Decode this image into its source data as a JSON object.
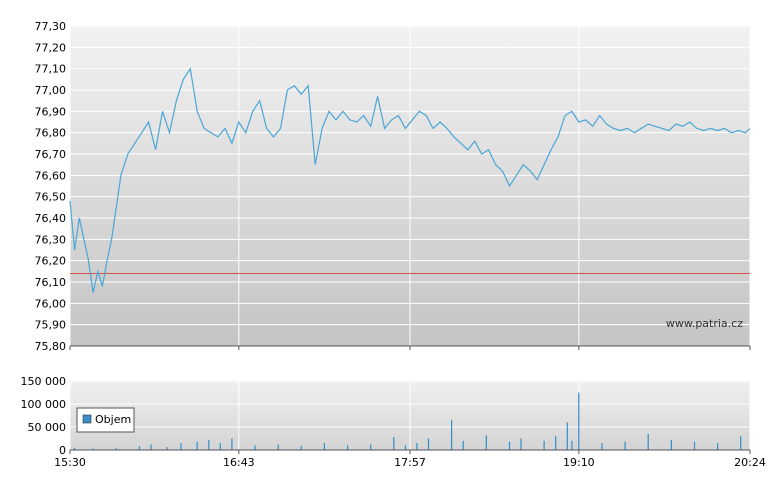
{
  "watermark": "www.patria.cz",
  "colors": {
    "price_line": "#4aa6d6",
    "reference_line": "#d9534f",
    "volume_bar": "#2f8fca",
    "legend_swatch": "#3b8fc8",
    "grid": "#ffffff",
    "plot_bg_top": "#f2f2f2",
    "plot_bg_bottom": "#c4c4c4"
  },
  "chart_data": [
    {
      "type": "line",
      "x_ticks": [
        "15:30",
        "16:43",
        "17:57",
        "19:10",
        "20:24"
      ],
      "y_ticks": [
        "77,30",
        "77,20",
        "77,10",
        "77,00",
        "76,90",
        "76,80",
        "76,70",
        "76,60",
        "76,50",
        "76,40",
        "76,30",
        "76,20",
        "76,10",
        "76,00",
        "75,90",
        "75,80"
      ],
      "ylim": [
        75.8,
        77.3
      ],
      "reference_value": 76.14,
      "series": [
        {
          "x": [
            "15:30",
            "15:32",
            "15:34",
            "15:36",
            "15:38",
            "15:40",
            "15:42",
            "15:44",
            "15:46",
            "15:48",
            "15:50",
            "15:52",
            "15:55",
            "15:58",
            "16:01",
            "16:04",
            "16:07",
            "16:10",
            "16:13",
            "16:16",
            "16:19",
            "16:22",
            "16:25",
            "16:28",
            "16:31",
            "16:34",
            "16:37",
            "16:40",
            "16:43",
            "16:46",
            "16:49",
            "16:52",
            "16:55",
            "16:58",
            "17:01",
            "17:04",
            "17:07",
            "17:10",
            "17:13",
            "17:16",
            "17:19",
            "17:22",
            "17:25",
            "17:28",
            "17:31",
            "17:34",
            "17:37",
            "17:40",
            "17:43",
            "17:46",
            "17:49",
            "17:52",
            "17:55",
            "17:58",
            "18:01",
            "18:04",
            "18:07",
            "18:10",
            "18:13",
            "18:16",
            "18:19",
            "18:22",
            "18:25",
            "18:28",
            "18:31",
            "18:34",
            "18:37",
            "18:40",
            "18:43",
            "18:46",
            "18:49",
            "18:52",
            "18:55",
            "18:58",
            "19:01",
            "19:04",
            "19:07",
            "19:10",
            "19:13",
            "19:16",
            "19:19",
            "19:22",
            "19:25",
            "19:28",
            "19:31",
            "19:34",
            "19:37",
            "19:40",
            "19:43",
            "19:46",
            "19:49",
            "19:52",
            "19:55",
            "19:58",
            "20:01",
            "20:04",
            "20:07",
            "20:10",
            "20:13",
            "20:16",
            "20:19",
            "20:22",
            "20:24"
          ],
          "y": [
            76.48,
            76.25,
            76.4,
            76.3,
            76.2,
            76.05,
            76.15,
            76.08,
            76.2,
            76.3,
            76.45,
            76.6,
            76.7,
            76.75,
            76.8,
            76.85,
            76.72,
            76.9,
            76.8,
            76.95,
            77.05,
            77.1,
            76.9,
            76.82,
            76.8,
            76.78,
            76.82,
            76.75,
            76.85,
            76.8,
            76.9,
            76.95,
            76.82,
            76.78,
            76.82,
            77.0,
            77.02,
            76.98,
            77.02,
            76.65,
            76.82,
            76.9,
            76.86,
            76.9,
            76.86,
            76.85,
            76.88,
            76.83,
            76.97,
            76.82,
            76.86,
            76.88,
            76.82,
            76.86,
            76.9,
            76.88,
            76.82,
            76.85,
            76.82,
            76.78,
            76.75,
            76.72,
            76.76,
            76.7,
            76.72,
            76.65,
            76.62,
            76.55,
            76.6,
            76.65,
            76.62,
            76.58,
            76.65,
            76.72,
            76.78,
            76.88,
            76.9,
            76.85,
            76.86,
            76.83,
            76.88,
            76.84,
            76.82,
            76.81,
            76.82,
            76.8,
            76.82,
            76.84,
            76.83,
            76.82,
            76.81,
            76.84,
            76.83,
            76.85,
            76.82,
            76.81,
            76.82,
            76.81,
            76.82,
            76.8,
            76.81,
            76.8,
            76.82
          ]
        }
      ]
    },
    {
      "type": "bar",
      "x_ticks": [
        "15:30",
        "16:43",
        "17:57",
        "19:10",
        "20:24"
      ],
      "y_ticks": [
        "150 000",
        "100 000",
        "50 000",
        "0"
      ],
      "ylim": [
        0,
        150000
      ],
      "legend": [
        "Objem"
      ],
      "series": [
        {
          "name": "Objem",
          "x": [
            "15:32",
            "15:40",
            "15:50",
            "16:00",
            "16:05",
            "16:12",
            "16:18",
            "16:25",
            "16:30",
            "16:35",
            "16:40",
            "16:50",
            "17:00",
            "17:10",
            "17:20",
            "17:30",
            "17:40",
            "17:50",
            "17:55",
            "18:00",
            "18:05",
            "18:15",
            "18:20",
            "18:30",
            "18:40",
            "18:45",
            "18:55",
            "19:00",
            "19:05",
            "19:07",
            "19:10",
            "19:20",
            "19:30",
            "19:40",
            "19:50",
            "20:00",
            "20:10",
            "20:20"
          ],
          "values": [
            5000,
            3000,
            4000,
            8000,
            12000,
            6000,
            15000,
            18000,
            22000,
            15000,
            25000,
            10000,
            12000,
            9000,
            15000,
            10000,
            12000,
            28000,
            10000,
            15000,
            25000,
            65000,
            20000,
            32000,
            18000,
            25000,
            20000,
            30000,
            60000,
            20000,
            125000,
            15000,
            18000,
            35000,
            22000,
            18000,
            15000,
            30000
          ]
        }
      ]
    }
  ]
}
